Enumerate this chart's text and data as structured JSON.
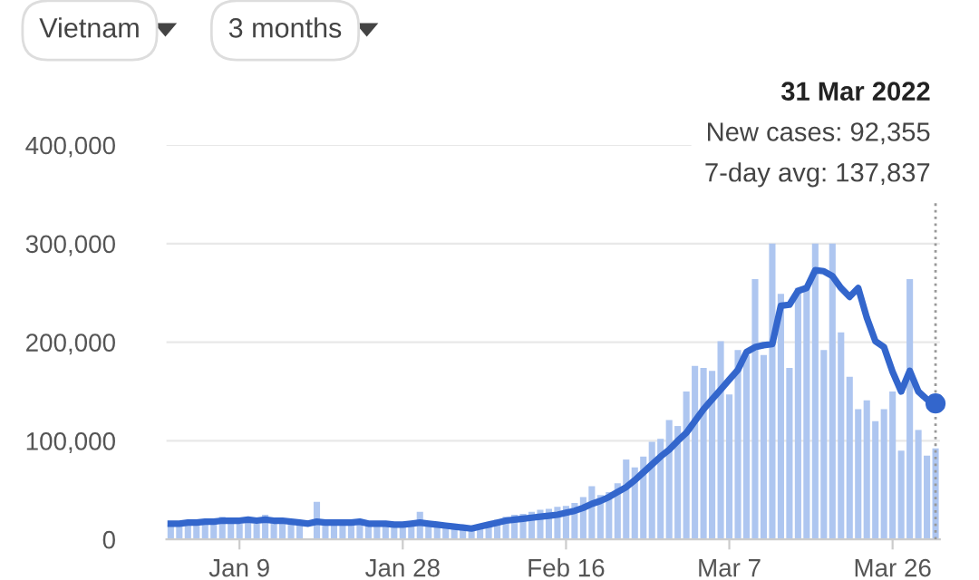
{
  "chart_data": {
    "type": "bar",
    "x": [
      "2022-01-01",
      "2022-01-02",
      "2022-01-03",
      "2022-01-04",
      "2022-01-05",
      "2022-01-06",
      "2022-01-07",
      "2022-01-08",
      "2022-01-09",
      "2022-01-10",
      "2022-01-11",
      "2022-01-12",
      "2022-01-13",
      "2022-01-14",
      "2022-01-15",
      "2022-01-16",
      "2022-01-17",
      "2022-01-18",
      "2022-01-19",
      "2022-01-20",
      "2022-01-21",
      "2022-01-22",
      "2022-01-23",
      "2022-01-24",
      "2022-01-25",
      "2022-01-26",
      "2022-01-27",
      "2022-01-28",
      "2022-01-29",
      "2022-01-30",
      "2022-01-31",
      "2022-02-01",
      "2022-02-02",
      "2022-02-03",
      "2022-02-04",
      "2022-02-05",
      "2022-02-06",
      "2022-02-07",
      "2022-02-08",
      "2022-02-09",
      "2022-02-10",
      "2022-02-11",
      "2022-02-12",
      "2022-02-13",
      "2022-02-14",
      "2022-02-15",
      "2022-02-16",
      "2022-02-17",
      "2022-02-18",
      "2022-02-19",
      "2022-02-20",
      "2022-02-21",
      "2022-02-22",
      "2022-02-23",
      "2022-02-24",
      "2022-02-25",
      "2022-02-26",
      "2022-02-27",
      "2022-02-28",
      "2022-03-01",
      "2022-03-02",
      "2022-03-03",
      "2022-03-04",
      "2022-03-05",
      "2022-03-06",
      "2022-03-07",
      "2022-03-08",
      "2022-03-09",
      "2022-03-10",
      "2022-03-11",
      "2022-03-12",
      "2022-03-13",
      "2022-03-14",
      "2022-03-15",
      "2022-03-16",
      "2022-03-17",
      "2022-03-18",
      "2022-03-19",
      "2022-03-20",
      "2022-03-21",
      "2022-03-22",
      "2022-03-23",
      "2022-03-24",
      "2022-03-25",
      "2022-03-26",
      "2022-03-27",
      "2022-03-28",
      "2022-03-29",
      "2022-03-30",
      "2022-03-31"
    ],
    "series": [
      {
        "color": "#aec6f0",
        "values": [
          15000,
          15000,
          16000,
          16000,
          17000,
          16000,
          23000,
          16000,
          16000,
          17000,
          16000,
          25000,
          17000,
          16000,
          16000,
          15000,
          null,
          38000,
          16000,
          16000,
          16000,
          16000,
          17000,
          15000,
          15000,
          15000,
          15000,
          15000,
          16000,
          28000,
          15000,
          14000,
          13000,
          12000,
          11000,
          10000,
          14000,
          17000,
          20000,
          23000,
          25000,
          26000,
          28000,
          30000,
          31000,
          33000,
          34000,
          37000,
          43000,
          54000,
          45000,
          48000,
          57000,
          81000,
          73000,
          84000,
          99000,
          102000,
          121000,
          115000,
          150000,
          176000,
          174000,
          171000,
          201000,
          147000,
          192000,
          187000,
          264000,
          187000,
          300000,
          249000,
          174000,
          255000,
          255000,
          300000,
          192000,
          300000,
          210000,
          165000,
          132000,
          141000,
          120000,
          132000,
          150000,
          90000,
          264000,
          111000,
          85000,
          92355
        ]
      },
      {
        "type": "line",
        "color": "#3366cc",
        "values": [
          16000,
          16000,
          17000,
          17000,
          18000,
          18000,
          19000,
          19000,
          19000,
          20000,
          19000,
          20000,
          19000,
          19000,
          18000,
          17000,
          16000,
          18000,
          17000,
          17000,
          17000,
          17000,
          18000,
          16000,
          16000,
          16000,
          15000,
          15000,
          16000,
          17000,
          16000,
          15000,
          14000,
          13000,
          12000,
          11000,
          13000,
          15000,
          17000,
          19000,
          20000,
          21000,
          22000,
          23000,
          24000,
          25000,
          27000,
          29000,
          32000,
          36000,
          39000,
          43000,
          48000,
          53000,
          60000,
          68000,
          76000,
          84000,
          91000,
          100000,
          108000,
          120000,
          132000,
          142000,
          152000,
          162000,
          172000,
          190000,
          195000,
          197000,
          198000,
          237000,
          238000,
          252000,
          255000,
          273000,
          272000,
          267000,
          255000,
          246000,
          255000,
          225000,
          201000,
          195000,
          170000,
          150000,
          171000,
          150000,
          142000,
          137837
        ]
      }
    ],
    "xlim": [
      "2021-12-31T12:00",
      "2022-03-31T12:00"
    ],
    "xticks": [
      {
        "value": "2022-01-09",
        "label": "Jan 9"
      },
      {
        "value": "2022-01-28",
        "label": "Jan 28"
      },
      {
        "value": "2022-02-16",
        "label": "Feb 16"
      },
      {
        "value": "2022-03-07",
        "label": "Mar 7"
      },
      {
        "value": "2022-03-26",
        "label": "Mar 26"
      }
    ],
    "ylim": [
      0,
      400000
    ],
    "yticks": [
      0,
      {
        "value": 100000,
        "label": "100,000"
      },
      {
        "value": 200000,
        "label": "200,000"
      },
      {
        "value": 300000,
        "label": "300,000"
      },
      {
        "value": 400000,
        "label": "400,000"
      }
    ],
    "grid": "y",
    "ref_lines": [
      {
        "axis": "x",
        "value": "2022-03-31",
        "label": null,
        "color": "#999999",
        "line_style": "dotted"
      }
    ],
    "annotations": [
      "Vietnam",
      "3 months",
      "31 Mar 2022\nNew cases: 92,355\n7-day avg: 137,837"
    ]
  }
}
